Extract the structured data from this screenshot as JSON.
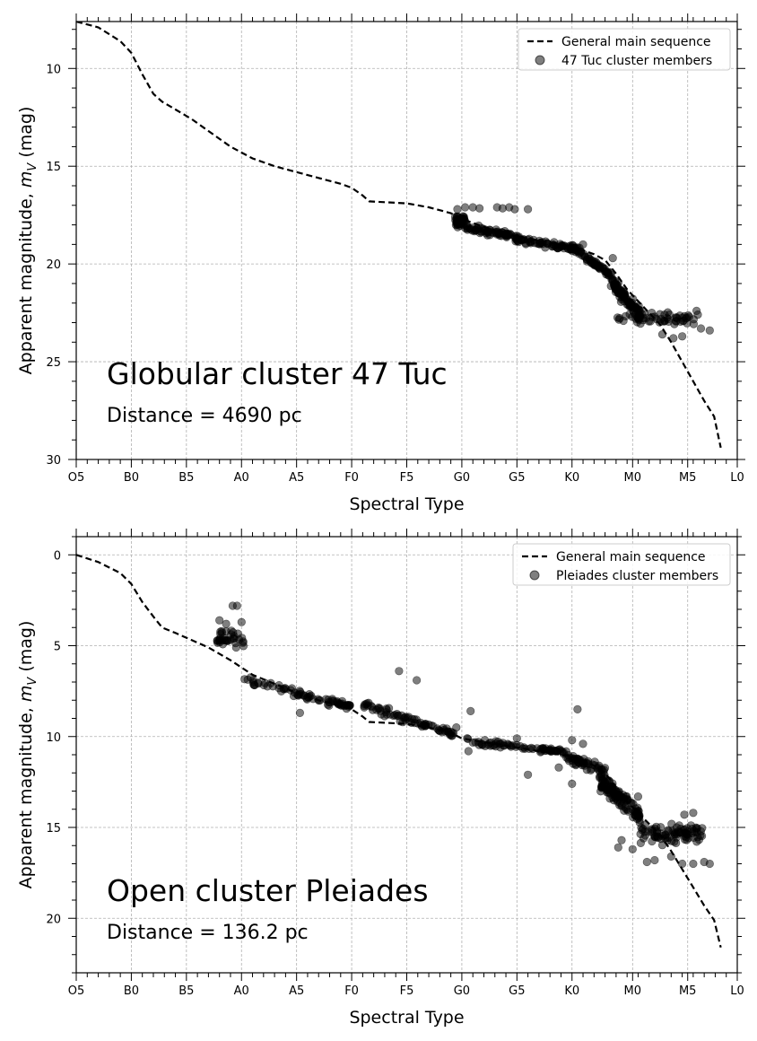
{
  "chart_data": [
    {
      "type": "scatter",
      "title": "Globular cluster 47 Tuc",
      "subtitle": "Distance = 4690 pc",
      "xlabel": "Spectral Type",
      "ylabel": "Apparent magnitude, m_V (mag)",
      "ylabel_main": "Apparent magnitude, ",
      "ylabel_m": "m",
      "ylabel_sub": "V",
      "ylabel_unit": " (mag)",
      "ylim": [
        30,
        7.6
      ],
      "y_inverted": true,
      "yticks": [
        10,
        15,
        20,
        25,
        30
      ],
      "xlim": [
        0,
        60
      ],
      "xticks": [
        {
          "x": 0,
          "label": "O5"
        },
        {
          "x": 5,
          "label": "B0"
        },
        {
          "x": 10,
          "label": "B5"
        },
        {
          "x": 15,
          "label": "A0"
        },
        {
          "x": 20,
          "label": "A5"
        },
        {
          "x": 25,
          "label": "F0"
        },
        {
          "x": 30,
          "label": "F5"
        },
        {
          "x": 35,
          "label": "G0"
        },
        {
          "x": 40,
          "label": "G5"
        },
        {
          "x": 45,
          "label": "K0"
        },
        {
          "x": 50.5,
          "label": "M0"
        },
        {
          "x": 55.5,
          "label": "M5"
        },
        {
          "x": 60,
          "label": "L0"
        }
      ],
      "grid": true,
      "legend_position": "top-right",
      "legend": [
        "General main sequence",
        "47 Tuc cluster members"
      ],
      "series": [
        {
          "name": "General main sequence",
          "type": "line",
          "style": "dashed",
          "points": [
            [
              0,
              7.6
            ],
            [
              2,
              7.9
            ],
            [
              4,
              8.6
            ],
            [
              5,
              9.2
            ],
            [
              6,
              10.3
            ],
            [
              7,
              11.3
            ],
            [
              7.8,
              11.7
            ],
            [
              9,
              12.1
            ],
            [
              10.5,
              12.6
            ],
            [
              12,
              13.2
            ],
            [
              14,
              14.0
            ],
            [
              16,
              14.6
            ],
            [
              18,
              15.0
            ],
            [
              20,
              15.3
            ],
            [
              22,
              15.6
            ],
            [
              24,
              15.9
            ],
            [
              25,
              16.1
            ],
            [
              26,
              16.5
            ],
            [
              26.6,
              16.8
            ],
            [
              30,
              16.9
            ],
            [
              32,
              17.1
            ],
            [
              34,
              17.4
            ],
            [
              35,
              17.7
            ],
            [
              38,
              18.3
            ],
            [
              40,
              18.6
            ],
            [
              42,
              18.8
            ],
            [
              45,
              19.1
            ],
            [
              47,
              19.5
            ],
            [
              48,
              19.8
            ],
            [
              49,
              20.5
            ],
            [
              50,
              21.3
            ],
            [
              51,
              21.9
            ],
            [
              52,
              22.5
            ],
            [
              53,
              23.1
            ],
            [
              54,
              24.0
            ],
            [
              55,
              25.0
            ],
            [
              56,
              26.0
            ],
            [
              57,
              27.0
            ],
            [
              57.9,
              27.8
            ],
            [
              58.5,
              29.4
            ]
          ]
        },
        {
          "name": "47 Tuc cluster members",
          "type": "scatter",
          "color": "#000000",
          "opacity": 0.5,
          "outliers": [
            [
              34.6,
              17.2
            ],
            [
              35.3,
              17.1
            ],
            [
              36.0,
              17.1
            ],
            [
              36.6,
              17.15
            ],
            [
              38.2,
              17.1
            ],
            [
              38.7,
              17.15
            ],
            [
              39.3,
              17.1
            ],
            [
              39.8,
              17.2
            ],
            [
              41.0,
              17.2
            ],
            [
              46.0,
              19.0
            ],
            [
              48.7,
              19.7
            ],
            [
              51.2,
              22.4
            ],
            [
              52.5,
              22.7
            ],
            [
              53.2,
              23.6
            ],
            [
              54.2,
              23.8
            ],
            [
              55.0,
              23.7
            ],
            [
              56.3,
              22.4
            ],
            [
              56.7,
              23.3
            ],
            [
              57.5,
              23.4
            ]
          ],
          "bands": [
            {
              "x": [
                34.3,
                35.3
              ],
              "y_center": 17.8,
              "spread": 0.55,
              "n": 45
            },
            {
              "x": [
                35.3,
                40.0
              ],
              "y_center_start": 18.1,
              "y_center_end": 18.65,
              "spread": 0.35,
              "n": 70
            },
            {
              "x": [
                40.0,
                45.5
              ],
              "y_center_start": 18.75,
              "y_center_end": 19.25,
              "spread": 0.3,
              "n": 75
            },
            {
              "x": [
                45.5,
                48.5
              ],
              "y_center_start": 19.3,
              "y_center_end": 20.6,
              "spread": 0.35,
              "n": 55
            },
            {
              "x": [
                48.5,
                51.2
              ],
              "y_center_start": 20.8,
              "y_center_end": 22.7,
              "spread": 0.7,
              "n": 95
            },
            {
              "x": [
                49.0,
                56.5
              ],
              "y_center": 22.8,
              "spread": 0.6,
              "n": 55
            }
          ]
        }
      ]
    },
    {
      "type": "scatter",
      "title": "Open cluster Pleiades",
      "subtitle": "Distance = 136.2 pc",
      "xlabel": "Spectral Type",
      "ylabel": "Apparent magnitude, m_V (mag)",
      "ylabel_main": "Apparent magnitude, ",
      "ylabel_m": "m",
      "ylabel_sub": "V",
      "ylabel_unit": " (mag)",
      "ylim": [
        23,
        -1.0
      ],
      "y_inverted": true,
      "yticks": [
        0,
        5,
        10,
        15,
        20
      ],
      "xlim": [
        0,
        60
      ],
      "xticks": [
        {
          "x": 0,
          "label": "O5"
        },
        {
          "x": 5,
          "label": "B0"
        },
        {
          "x": 10,
          "label": "B5"
        },
        {
          "x": 15,
          "label": "A0"
        },
        {
          "x": 20,
          "label": "A5"
        },
        {
          "x": 25,
          "label": "F0"
        },
        {
          "x": 30,
          "label": "F5"
        },
        {
          "x": 35,
          "label": "G0"
        },
        {
          "x": 40,
          "label": "G5"
        },
        {
          "x": 45,
          "label": "K0"
        },
        {
          "x": 50.5,
          "label": "M0"
        },
        {
          "x": 55.5,
          "label": "M5"
        },
        {
          "x": 60,
          "label": "L0"
        }
      ],
      "grid": true,
      "legend_position": "top-right",
      "legend": [
        "General main sequence",
        "Pleiades cluster members"
      ],
      "series": [
        {
          "name": "General main sequence",
          "type": "line",
          "style": "dashed",
          "points": [
            [
              0,
              0.0
            ],
            [
              2,
              0.4
            ],
            [
              4,
              1.0
            ],
            [
              5,
              1.6
            ],
            [
              6,
              2.6
            ],
            [
              7,
              3.4
            ],
            [
              7.8,
              4.0
            ],
            [
              9,
              4.3
            ],
            [
              10.5,
              4.7
            ],
            [
              12,
              5.1
            ],
            [
              14,
              5.8
            ],
            [
              16,
              6.6
            ],
            [
              18,
              7.1
            ],
            [
              20,
              7.6
            ],
            [
              22,
              8.0
            ],
            [
              24,
              8.3
            ],
            [
              25,
              8.5
            ],
            [
              26,
              8.9
            ],
            [
              26.6,
              9.2
            ],
            [
              30,
              9.3
            ],
            [
              32,
              9.5
            ],
            [
              34,
              9.8
            ],
            [
              35,
              10.1
            ],
            [
              38,
              10.4
            ],
            [
              40,
              10.6
            ],
            [
              42,
              10.8
            ],
            [
              45,
              11.1
            ],
            [
              47,
              11.6
            ],
            [
              48,
              12.0
            ],
            [
              49,
              12.8
            ],
            [
              50,
              13.6
            ],
            [
              51,
              14.2
            ],
            [
              52,
              14.8
            ],
            [
              53,
              15.4
            ],
            [
              54,
              16.3
            ],
            [
              55,
              17.3
            ],
            [
              56,
              18.3
            ],
            [
              57,
              19.3
            ],
            [
              57.9,
              20.1
            ],
            [
              58.5,
              21.6
            ]
          ]
        },
        {
          "name": "Pleiades cluster members",
          "type": "scatter",
          "color": "#000000",
          "opacity": 0.5,
          "outliers": [
            [
              13.0,
              3.6
            ],
            [
              13.2,
              4.2
            ],
            [
              13.6,
              3.8
            ],
            [
              14.2,
              2.8
            ],
            [
              14.6,
              2.8
            ],
            [
              15.0,
              3.7
            ],
            [
              20.3,
              8.7
            ],
            [
              29.3,
              6.4
            ],
            [
              30.9,
              6.9
            ],
            [
              33.0,
              9.7
            ],
            [
              34.5,
              9.5
            ],
            [
              35.8,
              8.6
            ],
            [
              35.6,
              10.8
            ],
            [
              38.5,
              10.6
            ],
            [
              40.0,
              10.1
            ],
            [
              41.0,
              12.1
            ],
            [
              43.8,
              11.7
            ],
            [
              45.0,
              12.6
            ],
            [
              45.5,
              8.5
            ],
            [
              45.0,
              10.2
            ],
            [
              46.0,
              10.4
            ],
            [
              49.5,
              15.7
            ],
            [
              51.0,
              13.3
            ],
            [
              51.5,
              15.6
            ],
            [
              52.5,
              16.8
            ],
            [
              54.0,
              16.6
            ],
            [
              55.0,
              17.0
            ],
            [
              56.0,
              17.0
            ],
            [
              57.0,
              16.9
            ],
            [
              57.5,
              17.0
            ],
            [
              54.5,
              15.0
            ],
            [
              55.2,
              14.3
            ],
            [
              56.0,
              14.2
            ],
            [
              49.2,
              16.1
            ],
            [
              50.5,
              16.2
            ],
            [
              51.8,
              16.9
            ]
          ],
          "bands": [
            {
              "x": [
                12.8,
                15.2
              ],
              "y_center": 4.6,
              "spread": 1.0,
              "n": 35
            },
            {
              "x": [
                15.2,
                25.0
              ],
              "y_center_start": 6.8,
              "y_center_end": 8.4,
              "spread": 0.4,
              "n": 75
            },
            {
              "x": [
                26.0,
                34.5
              ],
              "y_center_start": 8.2,
              "y_center_end": 9.9,
              "spread": 0.45,
              "n": 75
            },
            {
              "x": [
                35.0,
                44.5
              ],
              "y_center_start": 10.2,
              "y_center_end": 10.9,
              "spread": 0.35,
              "n": 70
            },
            {
              "x": [
                44.5,
                48.0
              ],
              "y_center_start": 11.1,
              "y_center_end": 11.9,
              "spread": 0.5,
              "n": 50
            },
            {
              "x": [
                47.5,
                51.2
              ],
              "y_center_start": 12.4,
              "y_center_end": 14.4,
              "spread": 0.9,
              "n": 110
            },
            {
              "x": [
                51.2,
                57.0
              ],
              "y_center": 15.4,
              "spread": 1.0,
              "n": 85
            }
          ]
        }
      ]
    }
  ]
}
